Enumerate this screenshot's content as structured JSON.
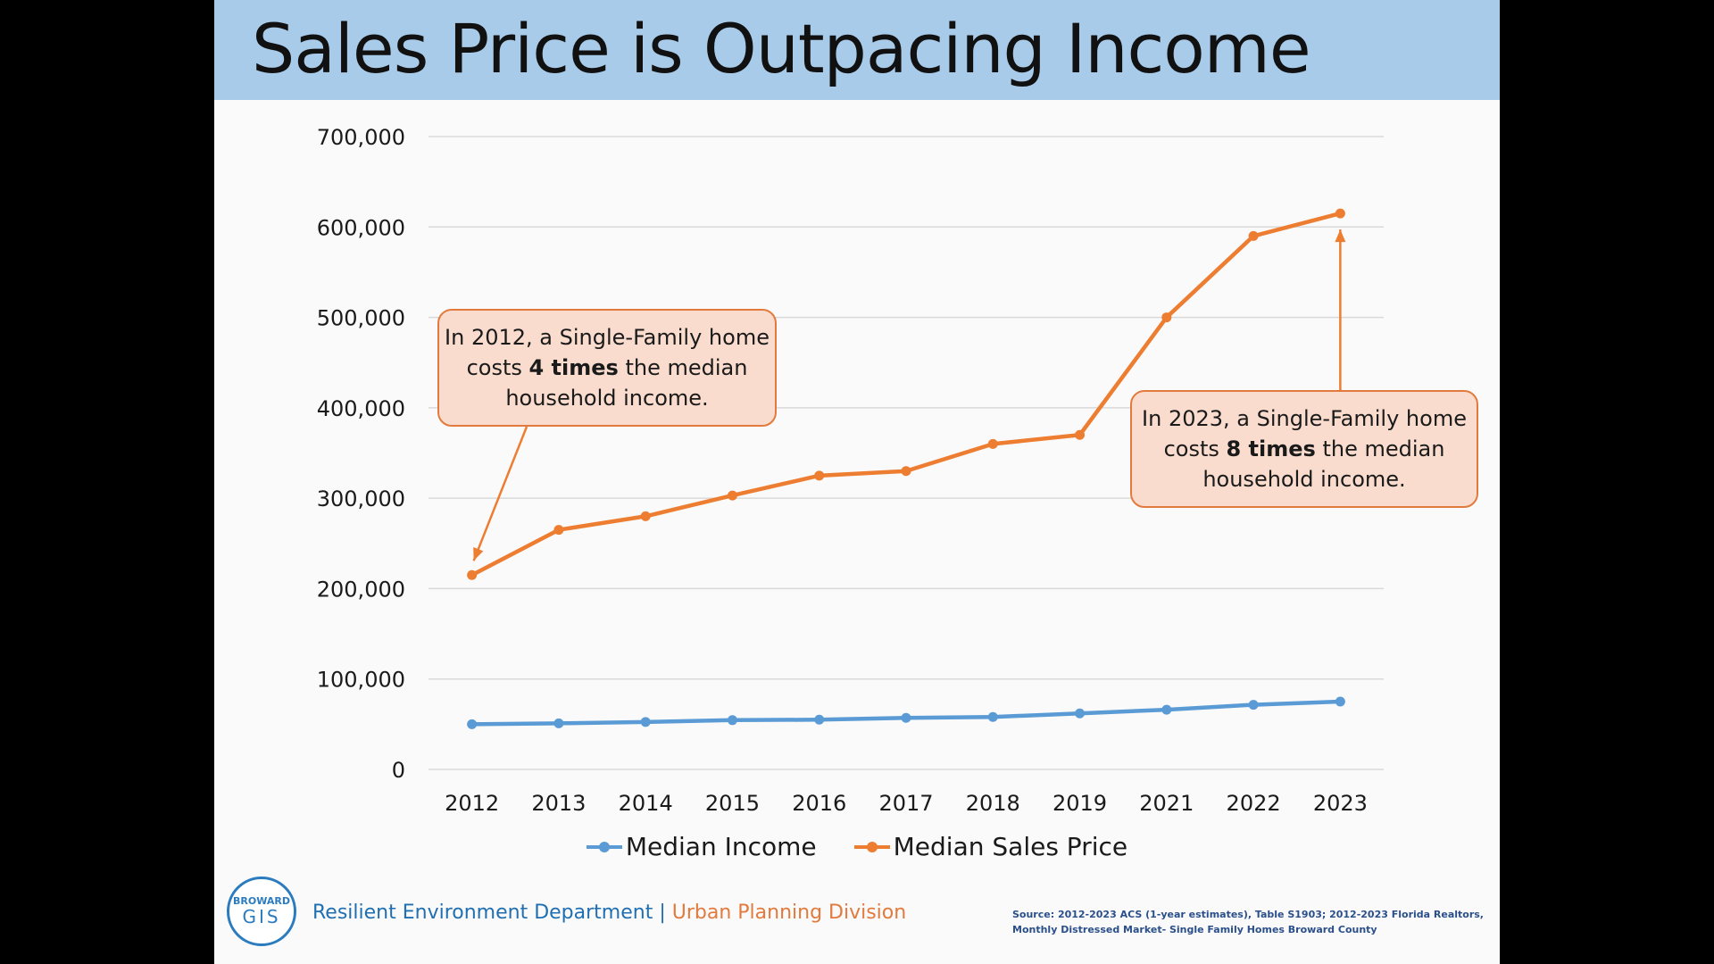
{
  "slide": {
    "title": "Sales Price is Outpacing Income"
  },
  "callouts": {
    "c2012": {
      "pre": "In 2012, a Single-Family home costs ",
      "bold": "4 times",
      "post": " the median household income."
    },
    "c2023": {
      "pre": "In 2023, a Single-Family home costs ",
      "bold": "8 times",
      "post": " the median household income."
    }
  },
  "footer": {
    "logo_top": "BROWARD",
    "logo_gis": "GIS",
    "department": "Resilient Environment Department",
    "separator": " | ",
    "division": "Urban Planning Division",
    "source": "Source: 2012-2023 ACS (1-year estimates), Table S1903; 2012-2023 Florida Realtors, Monthly Distressed Market- Single Family Homes Broward County"
  },
  "colors": {
    "income": "#5b9bd5",
    "sales": "#ed7d31",
    "grid": "#d9d9d9"
  },
  "chart_data": {
    "type": "line",
    "title": "Sales Price is Outpacing Income",
    "xlabel": "",
    "ylabel": "",
    "ylim": [
      0,
      700000
    ],
    "yticks": [
      0,
      100000,
      200000,
      300000,
      400000,
      500000,
      600000,
      700000
    ],
    "ytick_labels": [
      "0",
      "100,000",
      "200,000",
      "300,000",
      "400,000",
      "500,000",
      "600,000",
      "700,000"
    ],
    "grid": true,
    "legend": "bottom",
    "categories": [
      "2012",
      "2013",
      "2014",
      "2015",
      "2016",
      "2017",
      "2018",
      "2019",
      "2021",
      "2022",
      "2023"
    ],
    "series": [
      {
        "name": "Median Income",
        "values": [
          50000,
          51000,
          52500,
          54500,
          55000,
          57000,
          58000,
          62000,
          66000,
          71500,
          75000
        ]
      },
      {
        "name": "Median Sales Price",
        "values": [
          215000,
          265000,
          280000,
          303000,
          325000,
          330000,
          360000,
          370000,
          500000,
          590000,
          615000
        ]
      }
    ]
  }
}
